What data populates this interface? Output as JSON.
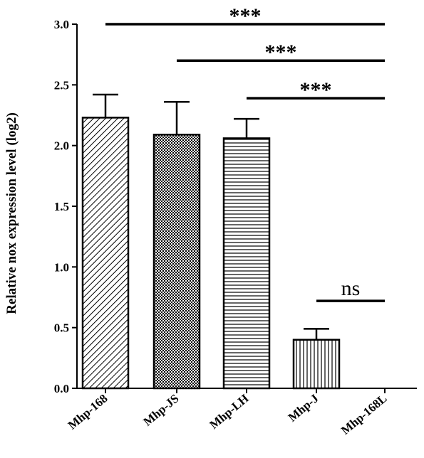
{
  "chart_data": {
    "type": "bar",
    "title": "",
    "xlabel": "",
    "ylabel": "Relative nox expression level (log2)",
    "ylim": [
      0,
      3.0
    ],
    "yticks": [
      "0.0",
      "0.5",
      "1.0",
      "1.5",
      "2.0",
      "2.5",
      "3.0"
    ],
    "grid": false,
    "categories": [
      "Mhp-168",
      "Mhp-JS",
      "Mhp-LH",
      "Mhp-J",
      "Mhp-168L"
    ],
    "values": [
      2.23,
      2.09,
      2.06,
      0.4,
      0.0
    ],
    "errors": [
      0.19,
      0.27,
      0.16,
      0.09,
      0.0
    ],
    "patterns": [
      "diagonal-hatch",
      "crosshatch-dots",
      "horizontal-lines",
      "vertical-lines",
      "none"
    ],
    "significance": [
      {
        "from": "Mhp-168",
        "to": "Mhp-168L",
        "y": 3.0,
        "label": "***"
      },
      {
        "from": "Mhp-JS",
        "to": "Mhp-168L",
        "y": 2.7,
        "label": "***"
      },
      {
        "from": "Mhp-LH",
        "to": "Mhp-168L",
        "y": 2.39,
        "label": "***"
      },
      {
        "from": "Mhp-J",
        "to": "Mhp-168L",
        "y": 0.72,
        "label": "ns"
      }
    ]
  }
}
